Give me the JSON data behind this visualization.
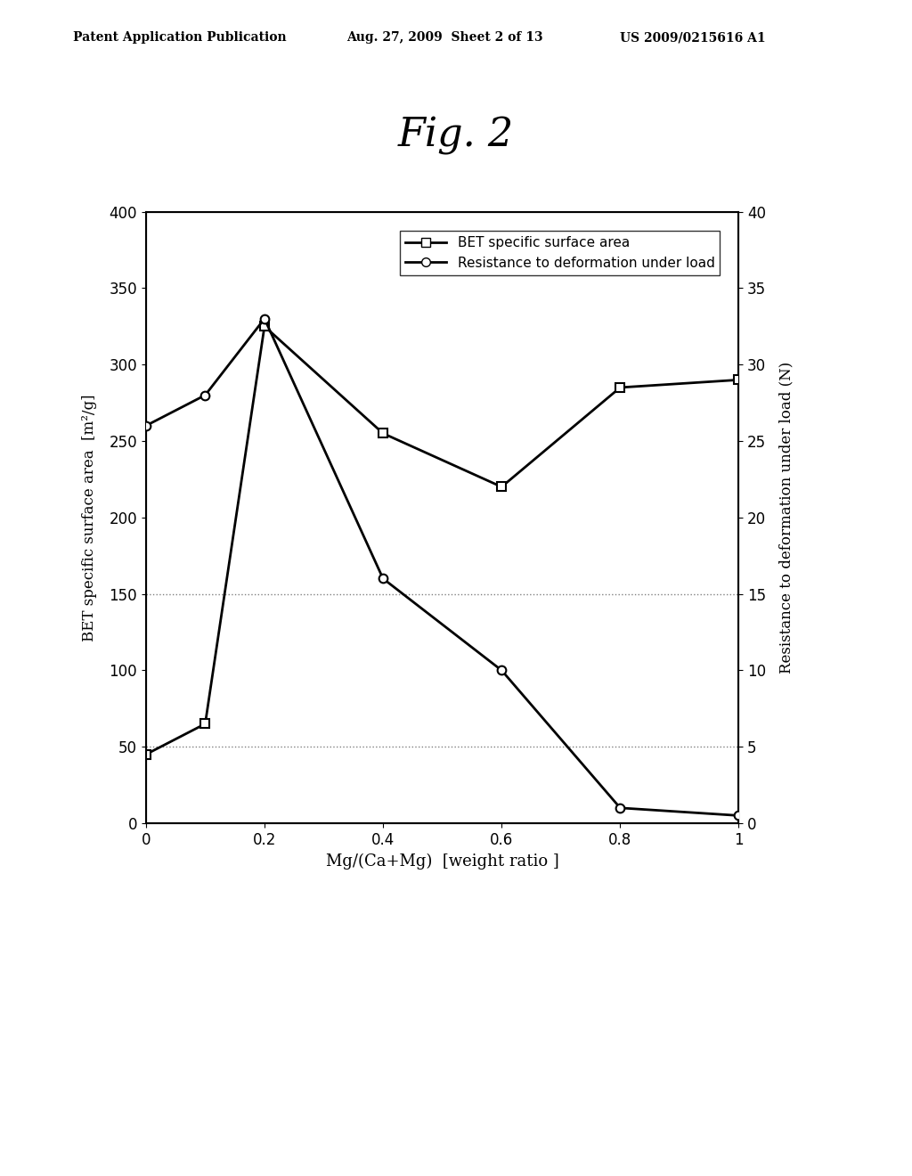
{
  "title": "Fig. 2",
  "header_left": "Patent Application Publication",
  "header_center": "Aug. 27, 2009  Sheet 2 of 13",
  "header_right": "US 2009/0215616 A1",
  "xlabel": "Mg/(Ca+Mg)  [weight ratio ]",
  "ylabel_left": "BET specific surface area  [m²/g]",
  "ylabel_right": "Resistance to deformation under load (N)",
  "ylim_left": [
    0,
    400
  ],
  "ylim_right": [
    0,
    40
  ],
  "xlim": [
    0,
    1
  ],
  "yticks_left": [
    0,
    50,
    100,
    150,
    200,
    250,
    300,
    350,
    400
  ],
  "yticks_right": [
    0,
    5,
    10,
    15,
    20,
    25,
    30,
    35,
    40
  ],
  "xticks": [
    0,
    0.2,
    0.4,
    0.6,
    0.8,
    1
  ],
  "xtick_labels": [
    "0",
    "0.2",
    "0.4",
    "0.6",
    "0.8",
    "1"
  ],
  "bet_x": [
    0,
    0.1,
    0.2,
    0.4,
    0.6,
    0.8,
    1.0
  ],
  "bet_y": [
    45,
    65,
    325,
    255,
    220,
    285,
    290
  ],
  "resistance_x": [
    0,
    0.1,
    0.2,
    0.4,
    0.6,
    0.8,
    1.0
  ],
  "resistance_y": [
    26,
    28,
    33,
    16,
    10,
    1,
    0.5
  ],
  "legend_bet": "BET specific surface area",
  "legend_resistance": "Resistance to deformation under load",
  "background_color": "#ffffff",
  "line_color": "#000000",
  "figure_width": 10.24,
  "figure_height": 13.2
}
